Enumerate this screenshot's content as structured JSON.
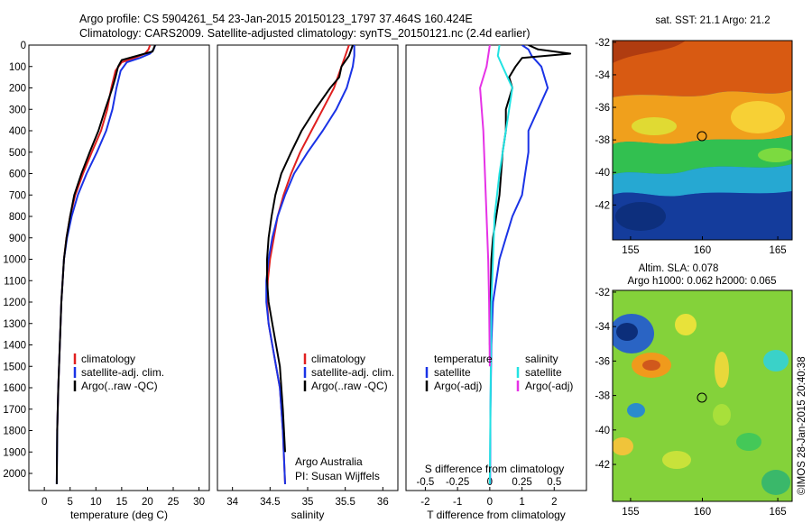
{
  "title": {
    "line1": "Argo profile: CS 5904261_54 23-Jan-2015 20150123_1797 37.464S 160.424E",
    "line2": "Climatology: CARS2009. Satellite-adjusted climatology: synTS_20150121.nc (2.4d earlier)"
  },
  "watermark": "©IMOS 28-Jan-2015 20:40:38",
  "credit": {
    "line1": "Argo Australia",
    "line2": "PI: Susan Wijffels"
  },
  "colors": {
    "climatology": "#e02020",
    "satellite": "#1a33e6",
    "argo": "#000000",
    "sal_sat": "#22e3e3",
    "sal_argo": "#e632e6"
  },
  "chart_data": [
    {
      "type": "line",
      "panel": "temperature",
      "xlabel": "temperature (deg C)",
      "ylabel": "",
      "xlim": [
        -3,
        32
      ],
      "ylim": [
        2080,
        0
      ],
      "xticks": [
        0,
        5,
        10,
        15,
        20,
        25,
        30
      ],
      "yticks": [
        0,
        100,
        200,
        300,
        400,
        500,
        600,
        700,
        800,
        900,
        1000,
        1100,
        1200,
        1300,
        1400,
        1500,
        1600,
        1700,
        1800,
        1900,
        2000
      ],
      "legend": [
        "climatology",
        "satellite-adj. clim.",
        "Argo(..raw -QC)"
      ],
      "series": [
        {
          "name": "climatology",
          "color": "#e02020",
          "x": [
            20.5,
            20.2,
            19.5,
            17.5,
            15.0,
            13.8,
            13.0,
            12.2,
            11.0,
            9.2,
            7.5,
            6.0,
            5.0,
            4.3,
            3.8,
            3.3,
            3.0,
            2.7,
            2.5
          ],
          "y": [
            0,
            20,
            40,
            60,
            80,
            120,
            200,
            300,
            400,
            500,
            600,
            700,
            800,
            900,
            1000,
            1200,
            1400,
            1600,
            1800
          ]
        },
        {
          "name": "satellite-adj. clim.",
          "color": "#1a33e6",
          "x": [
            21.5,
            21.2,
            20.5,
            18.5,
            16.0,
            14.8,
            14.0,
            13.2,
            12.0,
            10.2,
            8.2,
            6.5,
            5.3,
            4.4,
            3.8,
            3.3,
            3.0,
            2.7,
            2.5,
            2.4
          ],
          "y": [
            0,
            20,
            40,
            60,
            80,
            120,
            200,
            300,
            400,
            500,
            600,
            700,
            800,
            900,
            1000,
            1200,
            1400,
            1600,
            1800,
            2050
          ]
        },
        {
          "name": "Argo(..raw -QC)",
          "color": "#000000",
          "x": [
            21.5,
            21.3,
            21.0,
            18.0,
            15.0,
            14.3,
            13.8,
            13.2,
            12.5,
            11.8,
            10.5,
            8.8,
            7.2,
            5.8,
            5.0,
            4.3,
            3.8,
            3.3,
            3.0,
            2.7,
            2.5,
            2.4
          ],
          "y": [
            0,
            10,
            30,
            50,
            70,
            100,
            150,
            200,
            250,
            300,
            400,
            500,
            600,
            700,
            800,
            900,
            1000,
            1200,
            1400,
            1600,
            1800,
            2050
          ]
        }
      ]
    },
    {
      "type": "line",
      "panel": "salinity",
      "xlabel": "salinity",
      "xlim": [
        33.8,
        36.2
      ],
      "ylim": [
        2080,
        0
      ],
      "xticks": [
        34,
        34.5,
        35,
        35.5,
        36
      ],
      "legend": [
        "climatology",
        "satellite-adj. clim.",
        "Argo(..raw -QC)"
      ],
      "series": [
        {
          "name": "climatology",
          "color": "#e02020",
          "x": [
            35.55,
            35.5,
            35.45,
            35.35,
            35.2,
            35.05,
            34.9,
            34.78,
            34.68,
            34.6,
            34.55,
            34.5,
            34.47,
            34.46,
            34.48,
            34.53,
            34.58,
            34.63,
            34.67,
            34.7
          ],
          "y": [
            0,
            50,
            100,
            200,
            300,
            400,
            500,
            600,
            700,
            800,
            900,
            1000,
            1100,
            1200,
            1300,
            1400,
            1500,
            1600,
            1800,
            2050
          ]
        },
        {
          "name": "satellite-adj. clim.",
          "color": "#1a33e6",
          "x": [
            35.62,
            35.62,
            35.6,
            35.52,
            35.38,
            35.2,
            35.0,
            34.82,
            34.7,
            34.6,
            34.53,
            34.48,
            34.45,
            34.45,
            34.48,
            34.53,
            34.58,
            34.63,
            34.67,
            34.7
          ],
          "y": [
            0,
            50,
            100,
            200,
            300,
            400,
            500,
            600,
            700,
            800,
            900,
            1000,
            1100,
            1200,
            1300,
            1400,
            1500,
            1600,
            1800,
            2050
          ]
        },
        {
          "name": "Argo(..raw -QC)",
          "color": "#000000",
          "x": [
            35.6,
            35.55,
            35.45,
            35.42,
            35.3,
            35.1,
            34.92,
            34.78,
            34.65,
            34.57,
            34.52,
            34.48,
            34.46,
            34.46,
            34.48,
            34.53,
            34.58,
            34.63,
            34.67,
            34.7
          ],
          "y": [
            0,
            50,
            100,
            150,
            200,
            300,
            400,
            500,
            600,
            700,
            800,
            900,
            1000,
            1100,
            1200,
            1300,
            1400,
            1500,
            1700,
            1900
          ]
        }
      ]
    },
    {
      "type": "line",
      "panel": "difference",
      "xlabel": "T difference from climatology",
      "top_xlabel": "S difference from climatology",
      "xlim": [
        -2.6,
        3.0
      ],
      "ylim": [
        2080,
        0
      ],
      "xticks": [
        -2,
        -1,
        0,
        1,
        2
      ],
      "xticklabels": [
        "-2",
        "-1",
        "0",
        "1",
        "2"
      ],
      "top_xticks": [
        -0.5,
        -0.25,
        0,
        0.25,
        0.5
      ],
      "top_xticklabels": [
        "-0.5",
        "-0.25",
        "0",
        "0.25",
        "0.5"
      ],
      "legend_temperature_title": "temperature",
      "legend_salinity_title": "salinity",
      "legend_temperature": [
        "satellite",
        "Argo(-adj)"
      ],
      "legend_salinity": [
        "satellite",
        "Argo(-adj)"
      ],
      "series": [
        {
          "name": "T satellite",
          "color": "#1a33e6",
          "x": [
            1.0,
            1.2,
            1.3,
            1.6,
            1.8,
            1.5,
            1.2,
            1.2,
            1.1,
            1.0,
            0.7,
            0.5,
            0.3,
            0.2,
            0.1,
            0.05,
            0.02,
            0.01
          ],
          "y": [
            0,
            20,
            50,
            100,
            200,
            300,
            400,
            500,
            600,
            700,
            800,
            900,
            1000,
            1100,
            1200,
            1400,
            1700,
            2050
          ]
        },
        {
          "name": "T Argo(-adj)",
          "color": "#000000",
          "x": [
            1.2,
            1.5,
            2.5,
            1.0,
            0.8,
            0.6,
            0.7,
            0.5,
            0.5,
            0.4,
            0.35,
            0.3,
            0.2,
            0.1,
            0.05,
            0.02,
            0.0
          ],
          "y": [
            0,
            20,
            40,
            60,
            100,
            150,
            200,
            300,
            400,
            500,
            600,
            700,
            800,
            900,
            1000,
            1200,
            1400
          ]
        },
        {
          "name": "S satellite",
          "color": "#22e3e3",
          "x": [
            0.3,
            0.25,
            0.4,
            0.7,
            0.5,
            0.3,
            0.15,
            0.05,
            0.0
          ],
          "y": [
            0,
            50,
            100,
            200,
            400,
            600,
            800,
            1200,
            2050
          ]
        },
        {
          "name": "S Argo(-adj)",
          "color": "#e632e6",
          "x": [
            0.0,
            -0.1,
            -0.3,
            -0.2,
            -0.15,
            -0.1,
            -0.05,
            -0.02,
            0.0
          ],
          "y": [
            0,
            100,
            200,
            400,
            600,
            800,
            1000,
            1200,
            1500
          ]
        }
      ]
    }
  ],
  "maps": {
    "sst": {
      "title": "sat. SST: 21.1  Argo: 21.2",
      "xticks": [
        "155",
        "160",
        "165"
      ],
      "yticks": [
        "-32",
        "-34",
        "-36",
        "-38",
        "-40",
        "-42"
      ]
    },
    "sla": {
      "title_line1": "Altim. SLA: 0.078",
      "title_line2": "Argo h1000: 0.062  h2000: 0.065",
      "xticks": [
        "155",
        "160",
        "165"
      ],
      "yticks": [
        "-32",
        "-34",
        "-36",
        "-38",
        "-40",
        "-42"
      ]
    }
  }
}
